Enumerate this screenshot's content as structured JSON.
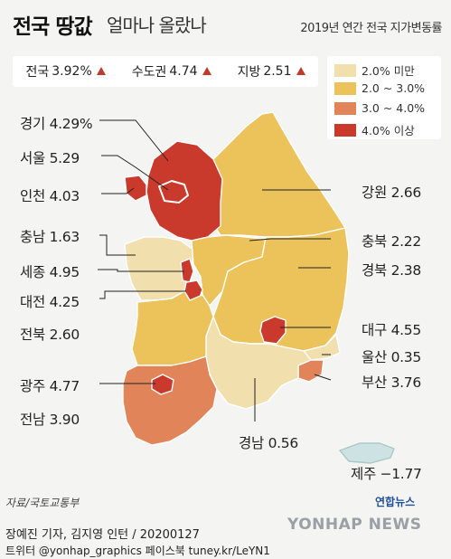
{
  "title": {
    "main": "전국 땅값",
    "sub": "얼마나 올랐나"
  },
  "subtitle": "2019년 연간 전국 지가변동률",
  "summary": [
    {
      "label": "전국",
      "value": "3.92%"
    },
    {
      "label": "수도권",
      "value": "4.74"
    },
    {
      "label": "지방",
      "value": "2.51"
    }
  ],
  "legend": [
    {
      "label": "2.0% 미만",
      "color": "#f2dfae"
    },
    {
      "label": "2.0 ~ 3.0%",
      "color": "#ebc35a"
    },
    {
      "label": "3.0 ~ 4.0%",
      "color": "#e2845a"
    },
    {
      "label": "4.0% 이상",
      "color": "#c93a2c"
    }
  ],
  "regions": [
    {
      "name": "경기",
      "value": "4.29%"
    },
    {
      "name": "서울",
      "value": "5.29"
    },
    {
      "name": "인천",
      "value": "4.03"
    },
    {
      "name": "충남",
      "value": "1.63"
    },
    {
      "name": "세종",
      "value": "4.95"
    },
    {
      "name": "대전",
      "value": "4.25"
    },
    {
      "name": "전북",
      "value": "2.60"
    },
    {
      "name": "광주",
      "value": "4.77"
    },
    {
      "name": "전남",
      "value": "3.90"
    },
    {
      "name": "강원",
      "value": "2.66"
    },
    {
      "name": "충북",
      "value": "2.22"
    },
    {
      "name": "경북",
      "value": "2.38"
    },
    {
      "name": "대구",
      "value": "4.55"
    },
    {
      "name": "울산",
      "value": "0.35"
    },
    {
      "name": "부산",
      "value": "3.76"
    },
    {
      "name": "경남",
      "value": "0.56"
    },
    {
      "name": "제주",
      "value": "−1.77"
    }
  ],
  "source": "자료/국토교통부",
  "footer": {
    "line1": "장예진 기자, 김지영 인턴 / 20200127",
    "line2": "트위터 @yonhap_graphics  페이스북 tuney.kr/LeYN1"
  },
  "logo": "연합뉴스",
  "watermark": "YONHAP NEWS"
}
